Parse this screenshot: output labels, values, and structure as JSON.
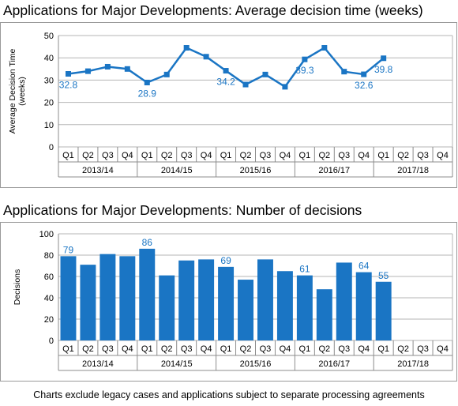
{
  "footnote": "Charts exclude legacy cases and applications subject to separate processing agreements",
  "chart_data": [
    {
      "type": "line",
      "title": "Applications for Major Developments: Average decision time (weeks)",
      "ylabel": "Average Decision Time (weeks)",
      "ylim": [
        0,
        50
      ],
      "yticks": [
        "0",
        "10",
        "20",
        "30",
        "40",
        "50"
      ],
      "grid": true,
      "color": "#1a75c4",
      "quarters": [
        "Q1",
        "Q2",
        "Q3",
        "Q4",
        "Q1",
        "Q2",
        "Q3",
        "Q4",
        "Q1",
        "Q2",
        "Q3",
        "Q4",
        "Q1",
        "Q2",
        "Q3",
        "Q4",
        "Q1",
        "Q2",
        "Q3",
        "Q4"
      ],
      "years": [
        "2013/14",
        "2014/15",
        "2015/16",
        "2016/17",
        "2017/18"
      ],
      "values": [
        32.8,
        34.0,
        36.0,
        35.0,
        28.9,
        32.5,
        44.5,
        40.5,
        34.2,
        28.0,
        32.5,
        27.0,
        39.3,
        44.5,
        33.8,
        32.6,
        39.8,
        null,
        null,
        null
      ],
      "labels": [
        "32.8",
        null,
        null,
        null,
        "28.9",
        null,
        null,
        null,
        "34.2",
        null,
        null,
        null,
        "39.3",
        null,
        null,
        "32.6",
        "39.8",
        null,
        null,
        null
      ]
    },
    {
      "type": "bar",
      "title": "Applications for Major Developments: Number of decisions",
      "ylabel": "Decisions",
      "ylim": [
        0,
        100
      ],
      "yticks": [
        "0",
        "20",
        "40",
        "60",
        "80",
        "100"
      ],
      "grid": true,
      "color": "#1a75c4",
      "quarters": [
        "Q1",
        "Q2",
        "Q3",
        "Q4",
        "Q1",
        "Q2",
        "Q3",
        "Q4",
        "Q1",
        "Q2",
        "Q3",
        "Q4",
        "Q1",
        "Q2",
        "Q3",
        "Q4",
        "Q1",
        "Q2",
        "Q3",
        "Q4"
      ],
      "years": [
        "2013/14",
        "2014/15",
        "2015/16",
        "2016/17",
        "2017/18"
      ],
      "values": [
        79,
        71,
        81,
        79,
        86,
        61,
        75,
        76,
        69,
        57,
        76,
        65,
        61,
        48,
        73,
        64,
        55,
        null,
        null,
        null
      ],
      "labels": [
        "79",
        null,
        null,
        null,
        "86",
        null,
        null,
        null,
        "69",
        null,
        null,
        null,
        "61",
        null,
        null,
        "64",
        "55",
        null,
        null,
        null
      ]
    }
  ]
}
